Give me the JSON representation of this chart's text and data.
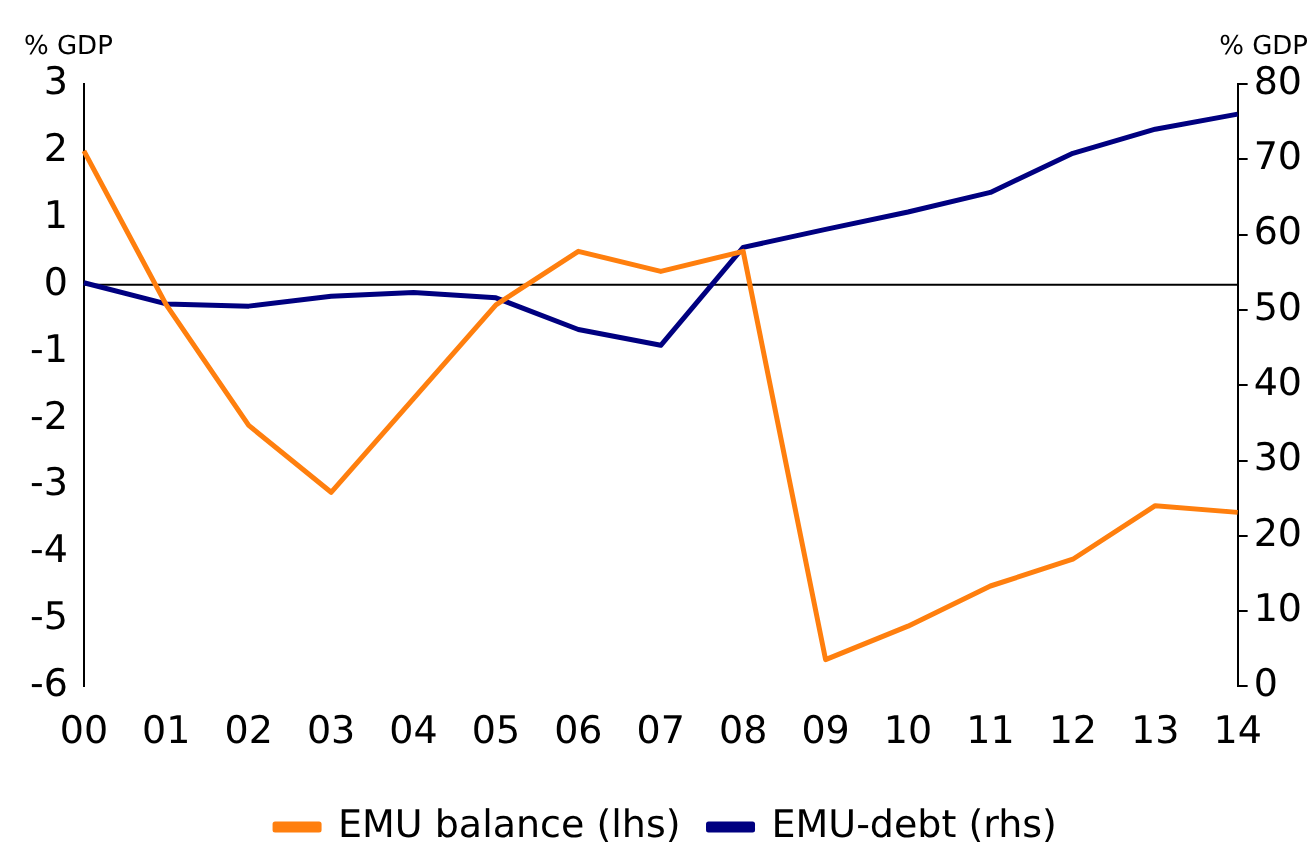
{
  "chart_data": {
    "type": "line",
    "categories": [
      "00",
      "01",
      "02",
      "03",
      "04",
      "05",
      "06",
      "07",
      "08",
      "09",
      "10",
      "11",
      "12",
      "13",
      "14"
    ],
    "ylabel": "% GDP",
    "y2label": "% GDP",
    "ylim": [
      -6,
      3
    ],
    "yticks": [
      -6,
      -5,
      -4,
      -3,
      -2,
      -1,
      0,
      1,
      2,
      3
    ],
    "y2lim": [
      0,
      80
    ],
    "y2ticks": [
      0,
      10,
      20,
      30,
      40,
      50,
      60,
      70,
      80
    ],
    "legend": "bottom",
    "grid": false,
    "ref_lines": [
      {
        "axis": "y",
        "value": 0,
        "color": "#000000"
      }
    ],
    "marker": "none",
    "line_style": "solid",
    "series": [
      {
        "name": "EMU balance (lhs)",
        "color": "#ff7f0e",
        "values": [
          2,
          -0.3,
          -2.1,
          -3.1,
          -1.7,
          -0.3,
          0.5,
          0.2,
          0.5,
          -5.6,
          -5.1,
          -4.5,
          -4.1,
          -3.3,
          -3.4
        ]
      },
      {
        "name": "EMU-debt (rhs)",
        "color": "#000080",
        "axis": "y2",
        "values": [
          53.6,
          50.8,
          50.5,
          51.8,
          52.3,
          51.6,
          47.4,
          45.3,
          58.3,
          60.7,
          63,
          65.6,
          70.8,
          74,
          76
        ]
      }
    ]
  }
}
